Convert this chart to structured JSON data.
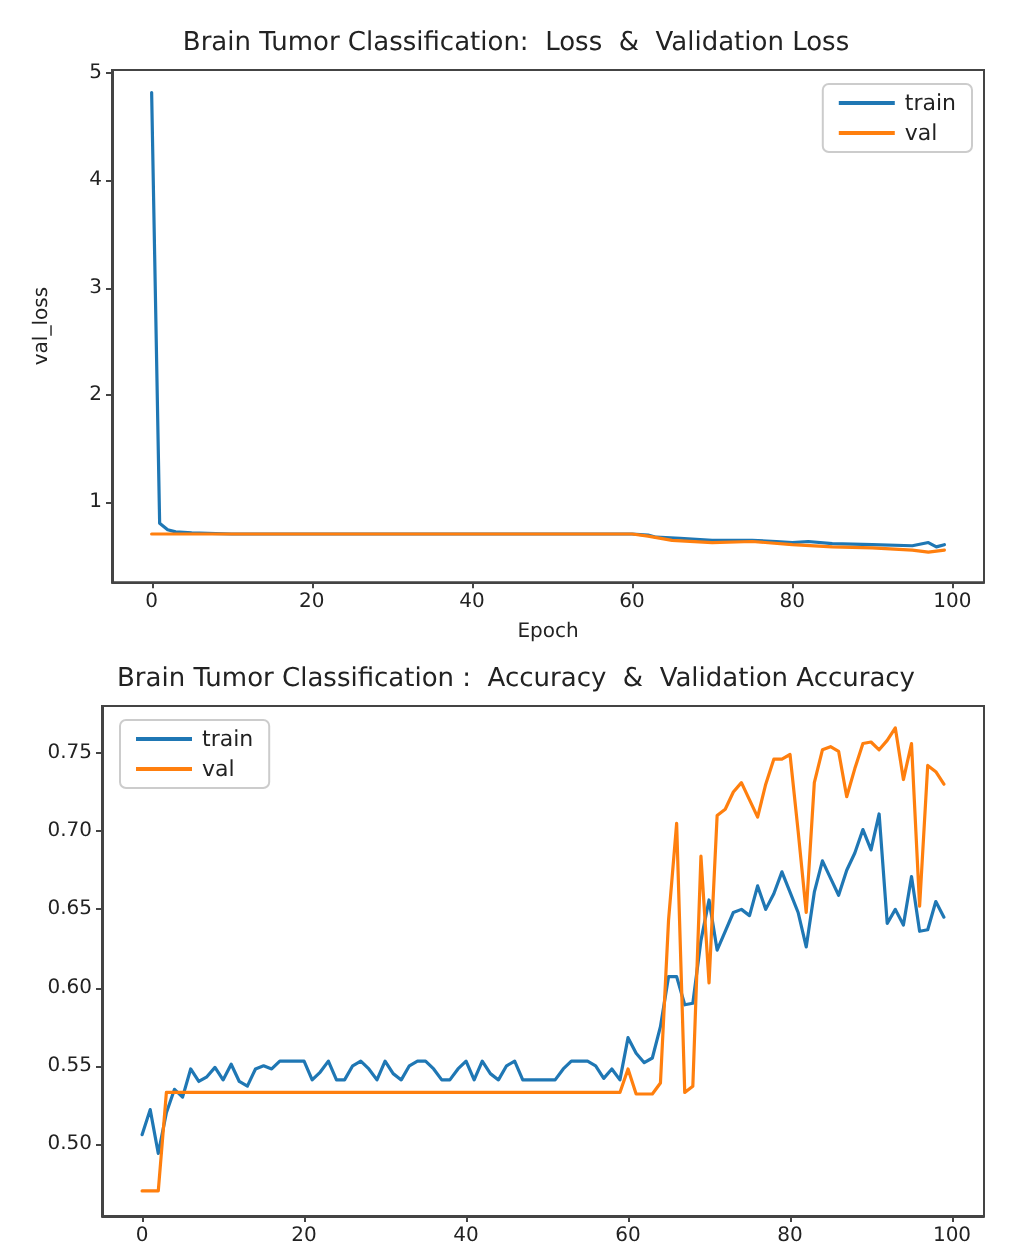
{
  "chart_data": [
    {
      "type": "line",
      "title": "Brain Tumor Classification:  Loss  &  Validation Loss",
      "xlabel": "Epoch",
      "ylabel": "val_loss",
      "xlim": [
        -4.95,
        103.95
      ],
      "ylim": [
        0.25,
        5.03
      ],
      "xticks": [
        0,
        20,
        40,
        60,
        80,
        100
      ],
      "yticks": [
        1,
        2,
        3,
        4,
        5
      ],
      "grid": false,
      "legend": "top right",
      "marker": "none",
      "line_style": "solid",
      "series": [
        {
          "name": "train",
          "color": "#1f77b4",
          "x": [
            0,
            1,
            2,
            3,
            5,
            10,
            60,
            62,
            63,
            66,
            70,
            75,
            78,
            80,
            82,
            85,
            90,
            95,
            97,
            98,
            99
          ],
          "values": [
            4.82,
            0.8,
            0.74,
            0.72,
            0.71,
            0.7,
            0.7,
            0.69,
            0.67,
            0.66,
            0.64,
            0.64,
            0.63,
            0.62,
            0.63,
            0.61,
            0.6,
            0.59,
            0.62,
            0.58,
            0.6
          ]
        },
        {
          "name": "val",
          "color": "#ff7f0e",
          "x": [
            0,
            60,
            62,
            65,
            70,
            75,
            80,
            85,
            90,
            95,
            97,
            99
          ],
          "values": [
            0.7,
            0.7,
            0.68,
            0.64,
            0.62,
            0.63,
            0.6,
            0.58,
            0.57,
            0.55,
            0.53,
            0.55
          ]
        }
      ]
    },
    {
      "type": "line",
      "title": "Brain Tumor Classification :  Accuracy  &  Validation Accuracy",
      "xlim": [
        -4.95,
        103.95
      ],
      "ylim": [
        0.454,
        0.78
      ],
      "xticks": [
        0,
        20,
        40,
        60,
        80,
        100
      ],
      "yticks": [
        {
          "value": 0.5,
          "label": "0.50"
        },
        {
          "value": 0.55,
          "label": "0.55"
        },
        {
          "value": 0.6,
          "label": "0.60"
        },
        {
          "value": 0.65,
          "label": "0.65"
        },
        {
          "value": 0.7,
          "label": "0.70"
        },
        {
          "value": 0.75,
          "label": "0.75"
        }
      ],
      "grid": false,
      "legend": "top left",
      "marker": "none",
      "line_style": "solid",
      "x": [
        0,
        1,
        2,
        3,
        4,
        5,
        6,
        7,
        8,
        9,
        10,
        11,
        12,
        13,
        14,
        15,
        16,
        17,
        18,
        19,
        20,
        21,
        22,
        23,
        24,
        25,
        26,
        27,
        28,
        29,
        30,
        31,
        32,
        33,
        34,
        35,
        36,
        37,
        38,
        39,
        40,
        41,
        42,
        43,
        44,
        45,
        46,
        47,
        48,
        49,
        50,
        51,
        52,
        53,
        54,
        55,
        56,
        57,
        58,
        59,
        60,
        61,
        62,
        63,
        64,
        65,
        66,
        67,
        68,
        69,
        70,
        71,
        72,
        73,
        74,
        75,
        76,
        77,
        78,
        79,
        80,
        81,
        82,
        83,
        84,
        85,
        86,
        87,
        88,
        89,
        90,
        91,
        92,
        93,
        94,
        95,
        96,
        97,
        98,
        99
      ],
      "series": [
        {
          "name": "train",
          "color": "#1f77b4",
          "values": [
            0.506,
            0.522,
            0.494,
            0.52,
            0.535,
            0.53,
            0.548,
            0.54,
            0.543,
            0.549,
            0.541,
            0.551,
            0.54,
            0.537,
            0.548,
            0.55,
            0.548,
            0.553,
            0.553,
            0.553,
            0.553,
            0.541,
            0.546,
            0.553,
            0.541,
            0.541,
            0.55,
            0.553,
            0.548,
            0.541,
            0.553,
            0.545,
            0.541,
            0.55,
            0.553,
            0.553,
            0.548,
            0.541,
            0.541,
            0.548,
            0.553,
            0.541,
            0.553,
            0.545,
            0.541,
            0.55,
            0.553,
            0.541,
            0.541,
            0.541,
            0.541,
            0.541,
            0.548,
            0.553,
            0.553,
            0.553,
            0.55,
            0.542,
            0.548,
            0.541,
            0.568,
            0.558,
            0.552,
            0.555,
            0.575,
            0.607,
            0.607,
            0.589,
            0.59,
            0.63,
            0.656,
            0.624,
            0.636,
            0.648,
            0.65,
            0.646,
            0.665,
            0.65,
            0.66,
            0.674,
            0.661,
            0.648,
            0.626,
            0.661,
            0.681,
            0.67,
            0.659,
            0.675,
            0.686,
            0.701,
            0.688,
            0.711,
            0.641,
            0.65,
            0.64,
            0.671,
            0.636,
            0.637,
            0.655,
            0.645
          ]
        },
        {
          "name": "val",
          "color": "#ff7f0e",
          "values": [
            0.47,
            0.47,
            0.47,
            0.533,
            0.533,
            0.533,
            0.533,
            0.533,
            0.533,
            0.533,
            0.533,
            0.533,
            0.533,
            0.533,
            0.533,
            0.533,
            0.533,
            0.533,
            0.533,
            0.533,
            0.533,
            0.533,
            0.533,
            0.533,
            0.533,
            0.533,
            0.533,
            0.533,
            0.533,
            0.533,
            0.533,
            0.533,
            0.533,
            0.533,
            0.533,
            0.533,
            0.533,
            0.533,
            0.533,
            0.533,
            0.533,
            0.533,
            0.533,
            0.533,
            0.533,
            0.533,
            0.533,
            0.533,
            0.533,
            0.533,
            0.533,
            0.533,
            0.533,
            0.533,
            0.533,
            0.533,
            0.533,
            0.533,
            0.533,
            0.533,
            0.548,
            0.532,
            0.532,
            0.532,
            0.539,
            0.643,
            0.705,
            0.533,
            0.537,
            0.684,
            0.603,
            0.71,
            0.714,
            0.725,
            0.731,
            0.72,
            0.709,
            0.73,
            0.746,
            0.746,
            0.749,
            0.7,
            0.648,
            0.731,
            0.752,
            0.754,
            0.751,
            0.722,
            0.74,
            0.756,
            0.757,
            0.752,
            0.758,
            0.766,
            0.733,
            0.756,
            0.652,
            0.742,
            0.738,
            0.73
          ]
        }
      ]
    }
  ]
}
